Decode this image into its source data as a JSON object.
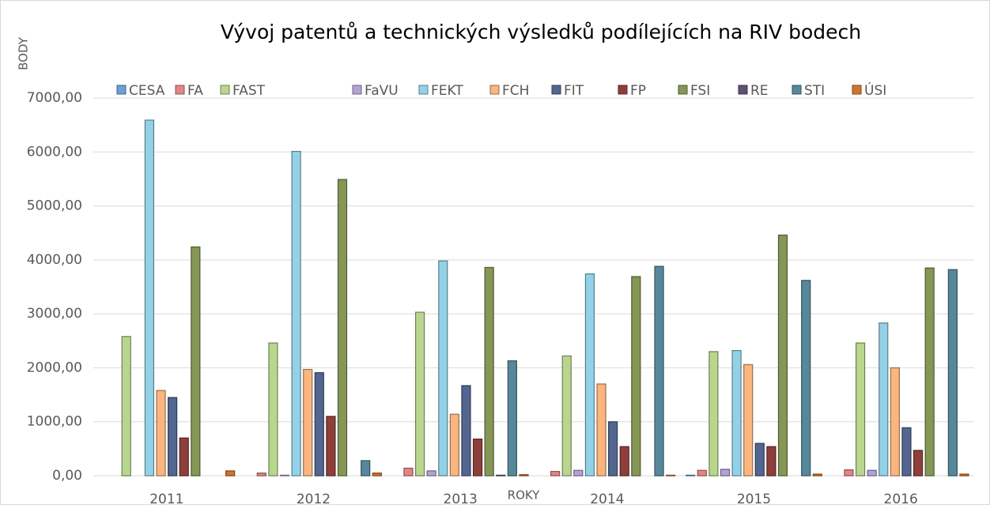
{
  "chart_data": {
    "type": "bar",
    "title": "Vývoj patentů a technických výsledků  podílejících na RIV bodech",
    "y_label": "BODY",
    "x_label": "ROKY",
    "categories": [
      "2011",
      "2012",
      "2013",
      "2014",
      "2015",
      "2016"
    ],
    "series": [
      {
        "name": "CESA",
        "color": "#6f9fd8",
        "values": [
          0,
          0,
          0,
          0,
          10,
          0
        ]
      },
      {
        "name": "FA",
        "color": "#e48585",
        "values": [
          0,
          50,
          140,
          80,
          100,
          110
        ]
      },
      {
        "name": "FAST",
        "color": "#b9d68e",
        "values": [
          2580,
          2460,
          3030,
          2220,
          2300,
          2460
        ]
      },
      {
        "name": "FaVU",
        "color": "#b3a2d6",
        "values": [
          0,
          10,
          90,
          100,
          120,
          100
        ]
      },
      {
        "name": "FEKT",
        "color": "#93d2e6",
        "values": [
          6590,
          6010,
          3980,
          3740,
          2320,
          2830
        ]
      },
      {
        "name": "FCH",
        "color": "#fbb57f",
        "values": [
          1580,
          1970,
          1140,
          1700,
          2060,
          2000
        ]
      },
      {
        "name": "FIT",
        "color": "#52668f",
        "values": [
          1450,
          1910,
          1670,
          1000,
          600,
          890
        ]
      },
      {
        "name": "FP",
        "color": "#8e3f3b",
        "values": [
          700,
          1100,
          680,
          540,
          540,
          470
        ]
      },
      {
        "name": "FSI",
        "color": "#859655",
        "values": [
          4240,
          5490,
          3860,
          3690,
          4460,
          3850
        ]
      },
      {
        "name": "RE",
        "color": "#605073",
        "values": [
          0,
          0,
          10,
          0,
          0,
          0
        ]
      },
      {
        "name": "STI",
        "color": "#55889a",
        "values": [
          0,
          280,
          2130,
          3880,
          3620,
          3820
        ]
      },
      {
        "name": "ÚSI",
        "color": "#d4742c",
        "values": [
          90,
          50,
          20,
          10,
          30,
          30
        ]
      }
    ],
    "ylim": [
      0,
      7000
    ],
    "yticks": [
      {
        "value": 0,
        "label": "0,00"
      },
      {
        "value": 1000,
        "label": "1000,00"
      },
      {
        "value": 2000,
        "label": "2000,00"
      },
      {
        "value": 3000,
        "label": "3000,00"
      },
      {
        "value": 4000,
        "label": "4000,00"
      },
      {
        "value": 5000,
        "label": "5000,00"
      },
      {
        "value": 6000,
        "label": "6000,00"
      },
      {
        "value": 7000,
        "label": "7000,00"
      }
    ],
    "grid": true,
    "legend": "top"
  }
}
